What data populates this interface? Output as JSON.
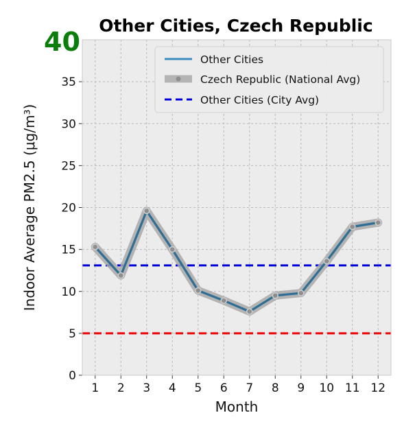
{
  "badge": {
    "text": "40",
    "color": "#0a7d0a"
  },
  "chart_data": {
    "type": "line",
    "title": "Other Cities, Czech Republic",
    "xlabel": "Month",
    "ylabel": "Indoor Average PM2.5 (μg/m³)",
    "x": [
      1,
      2,
      3,
      4,
      5,
      6,
      7,
      8,
      9,
      10,
      11,
      12
    ],
    "xlim": [
      0.5,
      12.5
    ],
    "ylim": [
      0,
      40
    ],
    "yticks": [
      0,
      5,
      10,
      15,
      20,
      25,
      30,
      35
    ],
    "grid": true,
    "legend_position": "top-right",
    "series": [
      {
        "name": "Other Cities",
        "values": [
          15.3,
          11.9,
          19.6,
          15.0,
          10.1,
          8.9,
          7.6,
          9.5,
          9.8,
          13.6,
          17.7,
          18.2
        ],
        "color": "#2e6e94"
      },
      {
        "name": "Czech Republic (National Avg)",
        "values": [
          15.3,
          11.9,
          19.6,
          15.0,
          10.1,
          8.9,
          7.6,
          9.5,
          9.8,
          13.6,
          17.7,
          18.2
        ],
        "color": "#a9a9a9"
      }
    ],
    "reference_lines": [
      {
        "name": "Other Cities (City Avg)",
        "value": 13.1,
        "color": "#0000dd",
        "style": "dashed",
        "in_legend": true
      },
      {
        "value": 5,
        "color": "#ee0000",
        "style": "dashed",
        "in_legend": false
      }
    ]
  }
}
